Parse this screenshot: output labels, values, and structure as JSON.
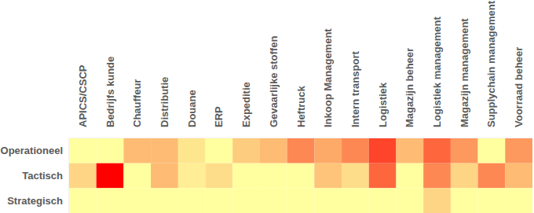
{
  "chart_data": {
    "type": "heatmap",
    "categories": [
      "APICS/CSCP",
      "Bedrijfs kunde",
      "Chauffeur",
      "Distributie",
      "Douane",
      "ERP",
      "Expeditie",
      "Gevaarlijke stoffen",
      "Heftruck",
      "Inkoop Management",
      "Intern transport",
      "Logistiek",
      "Magazijn beheer",
      "Logistiek management",
      "Magazijn management",
      "Supplychain management",
      "Voorraad beheer"
    ],
    "rows": [
      "Operationeel",
      "Tactisch",
      "Strategisch"
    ],
    "cells": [
      [
        0,
        0,
        4,
        4,
        1.5,
        0,
        3,
        4,
        6,
        5,
        6,
        8,
        4,
        7,
        5.5,
        0,
        5.5
      ],
      [
        2.5,
        10,
        0,
        4,
        1,
        2,
        0,
        0,
        0,
        3.5,
        2,
        7,
        0,
        6,
        2.5,
        6,
        4
      ],
      [
        0,
        0,
        0,
        0,
        0,
        0,
        0,
        0,
        0,
        0,
        0,
        0,
        0,
        2.5,
        0,
        0,
        0
      ]
    ],
    "zlim": [
      0,
      10
    ]
  }
}
